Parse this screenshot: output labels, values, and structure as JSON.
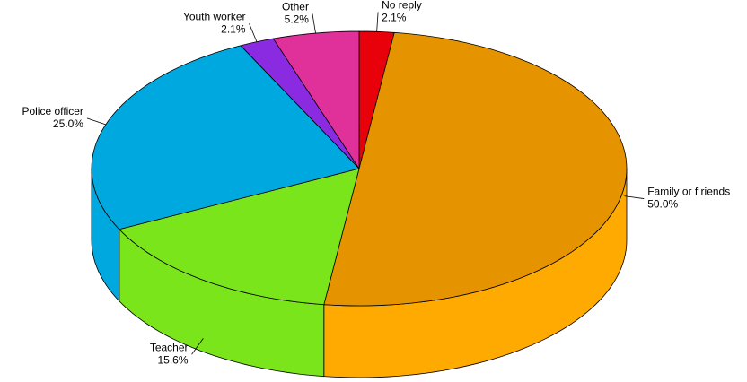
{
  "chart_data": {
    "type": "pie3d",
    "categories": [
      "No reply",
      "Family or f riends",
      "Teacher",
      "Police officer",
      "Youth worker",
      "Other"
    ],
    "values": [
      2.1,
      50.0,
      15.6,
      25.0,
      2.1,
      5.2
    ],
    "value_labels": [
      "2.1%",
      "50.0%",
      "15.6%",
      "25.0%",
      "2.1%",
      "5.2%"
    ],
    "colors": [
      "#e8000b",
      "#e59400",
      "#7ae51a",
      "#00a8e0",
      "#8a2be2",
      "#e0309a"
    ],
    "side_colors": [
      "#b00008",
      "#ffaa00",
      "#7ae51a",
      "#00a8e0",
      "#6a1fb0",
      "#b02078"
    ]
  }
}
